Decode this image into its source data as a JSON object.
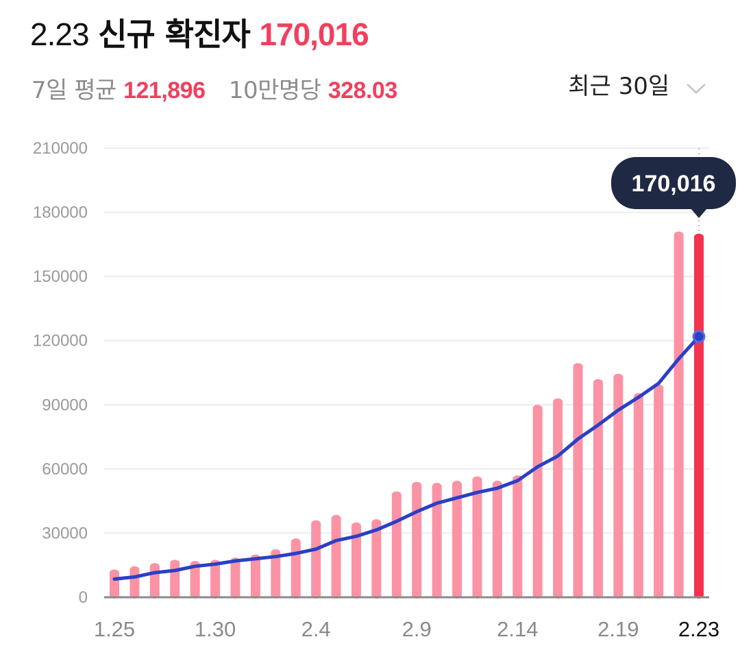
{
  "header": {
    "date": "2.23",
    "label": "신규 확진자",
    "count": "170,016"
  },
  "summary": {
    "avg_label": "7일 평균",
    "avg_value": "121,896",
    "per_label": "10만명당",
    "per_value": "328.03"
  },
  "range_select": {
    "label": "최근 30일",
    "icon": "chevron-down-icon"
  },
  "tooltip": {
    "value": "170,016"
  },
  "colors": {
    "bar": "#fb93a4",
    "bar_highlight": "#f5334f",
    "line": "#2a3fc7",
    "tooltip_bg": "#1f2944",
    "accent": "#f0405e"
  },
  "chart_data": {
    "type": "bar",
    "x": [
      "1.25",
      "1.26",
      "1.27",
      "1.28",
      "1.29",
      "1.30",
      "1.31",
      "2.1",
      "2.2",
      "2.3",
      "2.4",
      "2.5",
      "2.6",
      "2.7",
      "2.8",
      "2.9",
      "2.10",
      "2.11",
      "2.12",
      "2.13",
      "2.14",
      "2.15",
      "2.16",
      "2.17",
      "2.18",
      "2.19",
      "2.20",
      "2.21",
      "2.22",
      "2.23"
    ],
    "x_tick_labels": [
      "1.25",
      "1.30",
      "2.4",
      "2.9",
      "2.14",
      "2.19",
      "2.23"
    ],
    "series": [
      {
        "kind": "bar",
        "values": [
          13000,
          14500,
          16000,
          17500,
          17000,
          17500,
          18500,
          20000,
          22500,
          27500,
          36000,
          38500,
          35000,
          36500,
          49500,
          54000,
          53500,
          54500,
          56500,
          54500,
          57000,
          90000,
          93000,
          109500,
          102000,
          104500,
          95500,
          99500,
          171000,
          170016
        ]
      },
      {
        "kind": "line",
        "values": [
          8500,
          9500,
          11500,
          12500,
          14500,
          15500,
          17000,
          18000,
          19000,
          20500,
          22500,
          26500,
          28500,
          31500,
          35500,
          40000,
          44000,
          46500,
          49000,
          51000,
          54500,
          61000,
          66000,
          74000,
          80500,
          87500,
          93500,
          100000,
          111500,
          121896
        ]
      }
    ],
    "ylim": [
      0,
      210000
    ],
    "y_ticks": [
      0,
      30000,
      60000,
      90000,
      120000,
      150000,
      180000,
      210000
    ],
    "grid": true,
    "highlight_index": 29
  }
}
